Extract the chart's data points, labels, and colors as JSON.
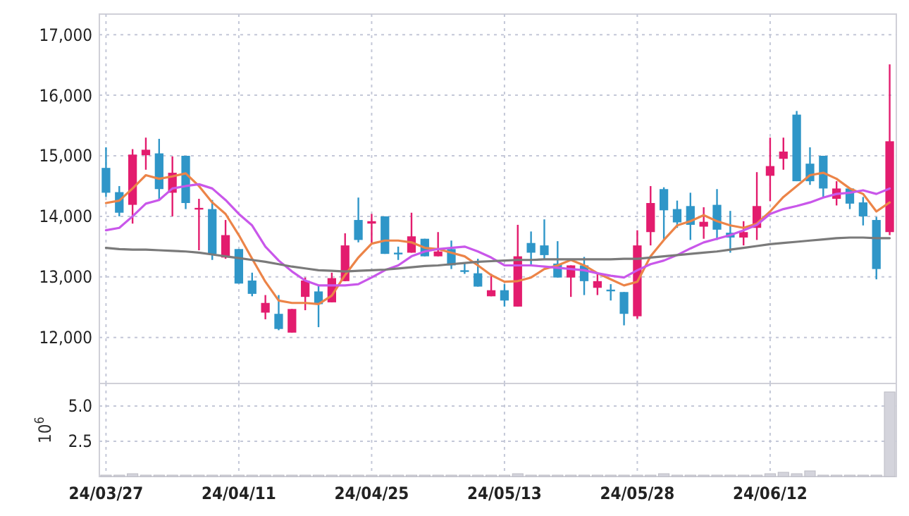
{
  "chart_data": [
    {
      "type": "candlestick",
      "categories": [
        null,
        null,
        null,
        null,
        null,
        null,
        null,
        null,
        null,
        null,
        null,
        null,
        null,
        null,
        null,
        null,
        null,
        null,
        null,
        null,
        null,
        null,
        null,
        null,
        null,
        null,
        null,
        null,
        null,
        null,
        null,
        null,
        null,
        null,
        null,
        null,
        null,
        null,
        null,
        null,
        null,
        null,
        null,
        null,
        null,
        null,
        null,
        null,
        null,
        null,
        null,
        null,
        null,
        null,
        null,
        null,
        null,
        null,
        null,
        null
      ],
      "ohlc": [
        [
          14800,
          15140,
          14320,
          14390
        ],
        [
          14400,
          14500,
          14000,
          14060
        ],
        [
          14190,
          15110,
          13880,
          15020
        ],
        [
          15010,
          15300,
          14770,
          15100
        ],
        [
          15040,
          15280,
          14270,
          14450
        ],
        [
          14390,
          14990,
          14000,
          14720
        ],
        [
          15000,
          15000,
          14120,
          14220
        ],
        [
          14120,
          14290,
          13440,
          14140
        ],
        [
          14120,
          14270,
          13280,
          13380
        ],
        [
          13320,
          13940,
          13300,
          13690
        ],
        [
          13460,
          13460,
          12890,
          12890
        ],
        [
          12940,
          13070,
          12680,
          12720
        ],
        [
          12410,
          12700,
          12300,
          12570
        ],
        [
          12390,
          12700,
          12120,
          12140
        ],
        [
          12080,
          12470,
          12080,
          12470
        ],
        [
          12670,
          12990,
          12450,
          12940
        ],
        [
          12760,
          12860,
          12170,
          12550
        ],
        [
          12580,
          13070,
          12580,
          12980
        ],
        [
          12930,
          13720,
          12930,
          13520
        ],
        [
          13940,
          14310,
          13570,
          13610
        ],
        [
          13880,
          14040,
          13560,
          13920
        ],
        [
          14000,
          14000,
          13380,
          13380
        ],
        [
          13400,
          13500,
          13280,
          13380
        ],
        [
          13400,
          14060,
          13400,
          13670
        ],
        [
          13630,
          13630,
          13340,
          13340
        ],
        [
          13340,
          13740,
          13340,
          13420
        ],
        [
          13460,
          13600,
          13130,
          13190
        ],
        [
          13110,
          13240,
          13050,
          13090
        ],
        [
          13060,
          13300,
          12840,
          12840
        ],
        [
          12680,
          13050,
          12680,
          12780
        ],
        [
          12780,
          12880,
          12510,
          12610
        ],
        [
          12510,
          13860,
          12510,
          13340
        ],
        [
          13560,
          13750,
          13200,
          13400
        ],
        [
          13520,
          13950,
          13300,
          13360
        ],
        [
          13220,
          13590,
          12990,
          12990
        ],
        [
          12990,
          13190,
          12670,
          13190
        ],
        [
          13190,
          13330,
          12700,
          12930
        ],
        [
          12820,
          13050,
          12700,
          12930
        ],
        [
          12790,
          12880,
          12610,
          12770
        ],
        [
          12750,
          12750,
          12200,
          12390
        ],
        [
          12350,
          13770,
          12310,
          13520
        ],
        [
          13740,
          14500,
          13520,
          14220
        ],
        [
          14450,
          14480,
          13610,
          14100
        ],
        [
          14120,
          14260,
          13810,
          13900
        ],
        [
          14170,
          14390,
          13610,
          13860
        ],
        [
          13830,
          14150,
          13630,
          13910
        ],
        [
          14190,
          14450,
          13610,
          13780
        ],
        [
          13730,
          14090,
          13400,
          13650
        ],
        [
          13650,
          13920,
          13520,
          13740
        ],
        [
          13810,
          14730,
          13610,
          14170
        ],
        [
          14670,
          15300,
          14250,
          14830
        ],
        [
          14950,
          15300,
          14770,
          15070
        ],
        [
          15680,
          15740,
          14580,
          14580
        ],
        [
          14870,
          15140,
          14520,
          14580
        ],
        [
          15000,
          15000,
          14310,
          14460
        ],
        [
          14290,
          14580,
          14180,
          14460
        ],
        [
          14460,
          14460,
          14120,
          14210
        ],
        [
          14230,
          14320,
          13850,
          14000
        ],
        [
          13940,
          13990,
          12960,
          13130
        ],
        [
          13740,
          16510,
          13690,
          15240
        ]
      ],
      "colors": [
        "#2f96c8",
        "#2f96c8",
        "#e31c6e",
        "#e31c6e",
        "#2f96c8",
        "#e31c6e",
        "#2f96c8",
        "#e31c6e",
        "#2f96c8",
        "#e31c6e",
        "#2f96c8",
        "#2f96c8",
        "#e31c6e",
        "#2f96c8",
        "#e31c6e",
        "#e31c6e",
        "#2f96c8",
        "#e31c6e",
        "#e31c6e",
        "#2f96c8",
        "#e31c6e",
        "#2f96c8",
        "#2f96c8",
        "#e31c6e",
        "#2f96c8",
        "#e31c6e",
        "#2f96c8",
        "#2f96c8",
        "#2f96c8",
        "#e31c6e",
        "#2f96c8",
        "#e31c6e",
        "#2f96c8",
        "#2f96c8",
        "#2f96c8",
        "#e31c6e",
        "#2f96c8",
        "#e31c6e",
        "#2f96c8",
        "#2f96c8",
        "#e31c6e",
        "#e31c6e",
        "#2f96c8",
        "#2f96c8",
        "#2f96c8",
        "#e31c6e",
        "#2f96c8",
        "#2f96c8",
        "#e31c6e",
        "#e31c6e",
        "#e31c6e",
        "#e31c6e",
        "#2f96c8",
        "#2f96c8",
        "#2f96c8",
        "#e31c6e",
        "#2f96c8",
        "#2f96c8",
        "#2f96c8",
        "#e31c6e"
      ],
      "series": [
        {
          "type": "line",
          "color": "#ec8448",
          "values": [
            14220,
            14260,
            14460,
            14680,
            14620,
            14660,
            14710,
            14500,
            14230,
            14040,
            13690,
            13300,
            12920,
            12610,
            12570,
            12570,
            12550,
            12690,
            13030,
            13320,
            13550,
            13600,
            13600,
            13570,
            13480,
            13460,
            13400,
            13340,
            13190,
            13030,
            12920,
            12930,
            12990,
            13130,
            13190,
            13280,
            13190,
            13060,
            12960,
            12860,
            12920,
            13340,
            13610,
            13850,
            13920,
            14020,
            13920,
            13850,
            13810,
            13880,
            14080,
            14320,
            14500,
            14680,
            14720,
            14620,
            14460,
            14370,
            14080,
            14230
          ]
        },
        {
          "type": "line",
          "color": "#c957ea",
          "values": [
            13770,
            13810,
            14000,
            14210,
            14270,
            14460,
            14500,
            14530,
            14460,
            14270,
            14040,
            13850,
            13500,
            13270,
            13090,
            12940,
            12860,
            12860,
            12860,
            12880,
            12990,
            13110,
            13190,
            13340,
            13420,
            13460,
            13480,
            13500,
            13420,
            13320,
            13190,
            13190,
            13190,
            13170,
            13150,
            13130,
            13110,
            13060,
            13020,
            12990,
            13110,
            13210,
            13270,
            13360,
            13470,
            13570,
            13630,
            13690,
            13770,
            13860,
            14040,
            14120,
            14170,
            14230,
            14310,
            14370,
            14390,
            14430,
            14370,
            14460
          ]
        },
        {
          "type": "line",
          "color": "#7a7a7a",
          "values": [
            13480,
            13460,
            13450,
            13450,
            13440,
            13430,
            13420,
            13400,
            13370,
            13340,
            13310,
            13280,
            13250,
            13210,
            13170,
            13140,
            13110,
            13100,
            13090,
            13100,
            13110,
            13120,
            13140,
            13160,
            13180,
            13190,
            13210,
            13230,
            13250,
            13260,
            13270,
            13280,
            13280,
            13290,
            13290,
            13290,
            13290,
            13290,
            13290,
            13300,
            13300,
            13320,
            13340,
            13360,
            13380,
            13400,
            13420,
            13450,
            13480,
            13510,
            13540,
            13560,
            13580,
            13600,
            13620,
            13640,
            13650,
            13650,
            13640,
            13640
          ]
        }
      ],
      "ylim": [
        11240,
        17340
      ],
      "yticks": [
        {
          "value": 12000,
          "label": "12,000"
        },
        {
          "value": 13000,
          "label": "13,000"
        },
        {
          "value": 14000,
          "label": "14,000"
        },
        {
          "value": 15000,
          "label": "15,000"
        },
        {
          "value": 16000,
          "label": "16,000"
        },
        {
          "value": 17000,
          "label": "17,000"
        }
      ],
      "grid": true,
      "tick_labels": "y"
    },
    {
      "type": "bar",
      "categories": [
        "24/03/27",
        null,
        null,
        null,
        null,
        null,
        null,
        null,
        null,
        null,
        "24/04/11",
        null,
        null,
        null,
        null,
        null,
        null,
        null,
        null,
        null,
        "24/04/25",
        null,
        null,
        null,
        null,
        null,
        null,
        null,
        null,
        null,
        "24/05/13",
        null,
        null,
        null,
        null,
        null,
        null,
        null,
        null,
        null,
        "24/05/28",
        null,
        null,
        null,
        null,
        null,
        null,
        null,
        null,
        null,
        "24/06/12",
        null,
        null,
        null,
        null,
        null,
        null,
        null,
        null,
        null
      ],
      "values": [
        0.1,
        0.1,
        0.2,
        0.1,
        0.1,
        0.1,
        0.1,
        0.1,
        0.1,
        0.1,
        0.1,
        0.1,
        0.1,
        0.1,
        0.1,
        0.1,
        0.1,
        0.1,
        0.1,
        0.1,
        0.1,
        0.1,
        0.1,
        0.1,
        0.1,
        0.1,
        0.1,
        0.1,
        0.1,
        0.1,
        0.1,
        0.2,
        0.1,
        0.1,
        0.1,
        0.1,
        0.1,
        0.1,
        0.1,
        0.1,
        0.1,
        0.1,
        0.2,
        0.1,
        0.1,
        0.1,
        0.1,
        0.1,
        0.1,
        0.1,
        0.2,
        0.3,
        0.2,
        0.4,
        0.1,
        0.1,
        0.1,
        0.1,
        0.1,
        6.0
      ],
      "color": "#d4d4dc",
      "ylabel": "10$^{6}$",
      "ylim": [
        0,
        6.6
      ],
      "yticks": [
        {
          "value": 2.5,
          "label": "2.5"
        },
        {
          "value": 5,
          "label": "5.0"
        }
      ],
      "grid": true
    }
  ]
}
